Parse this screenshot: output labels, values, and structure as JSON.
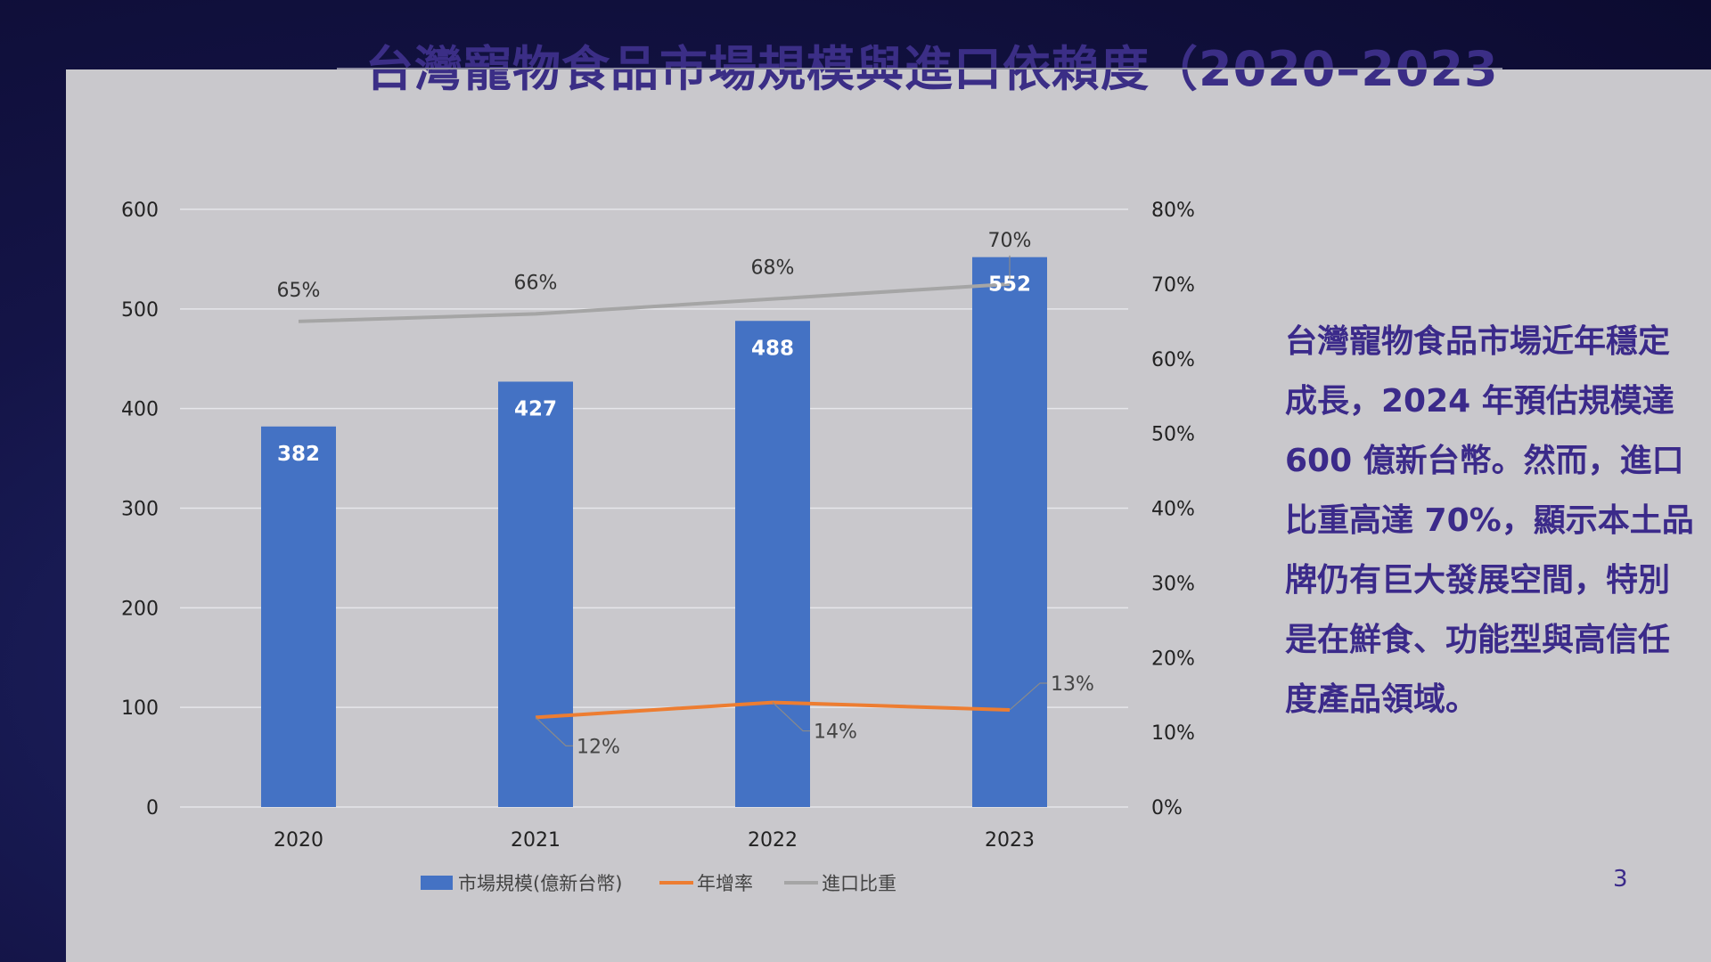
{
  "slide": {
    "title": "台灣寵物食品市場規模與進口依賴度（2020–2023",
    "page_number": "3",
    "description": "台灣寵物食品市場近年穩定成長，2024 年預估規模達 600 億新台幣。然而，進口比重高達 70%，顯示本土品牌仍有巨大發展空間，特別是在鮮食、功能型與高信任度產品領域。"
  },
  "colors": {
    "bar": "#4472c4",
    "growth_line": "#ed7d31",
    "import_line": "#a5a5a5",
    "text_accent": "#3b2a8a"
  },
  "chart_data": {
    "type": "bar",
    "categories": [
      "2020",
      "2021",
      "2022",
      "2023"
    ],
    "series": [
      {
        "name": "市場規模(億新台幣)",
        "type": "bar",
        "axis": "left",
        "values": [
          382,
          427,
          488,
          552
        ],
        "labels": [
          "382",
          "427",
          "488",
          "552"
        ]
      },
      {
        "name": "年增率",
        "type": "line",
        "axis": "right",
        "values": [
          null,
          12,
          14,
          13
        ],
        "labels": [
          "",
          "12%",
          "14%",
          "13%"
        ]
      },
      {
        "name": "進口比重",
        "type": "line",
        "axis": "right",
        "values": [
          65,
          66,
          68,
          70
        ],
        "labels": [
          "65%",
          "66%",
          "68%",
          "70%"
        ]
      }
    ],
    "y_left": {
      "min": 0,
      "max": 600,
      "ticks": [
        "0",
        "100",
        "200",
        "300",
        "400",
        "500",
        "600"
      ]
    },
    "y_right": {
      "min": 0,
      "max": 80,
      "ticks": [
        "0%",
        "10%",
        "20%",
        "30%",
        "40%",
        "50%",
        "60%",
        "70%",
        "80%"
      ]
    },
    "grid": true,
    "legend": "bottom"
  }
}
